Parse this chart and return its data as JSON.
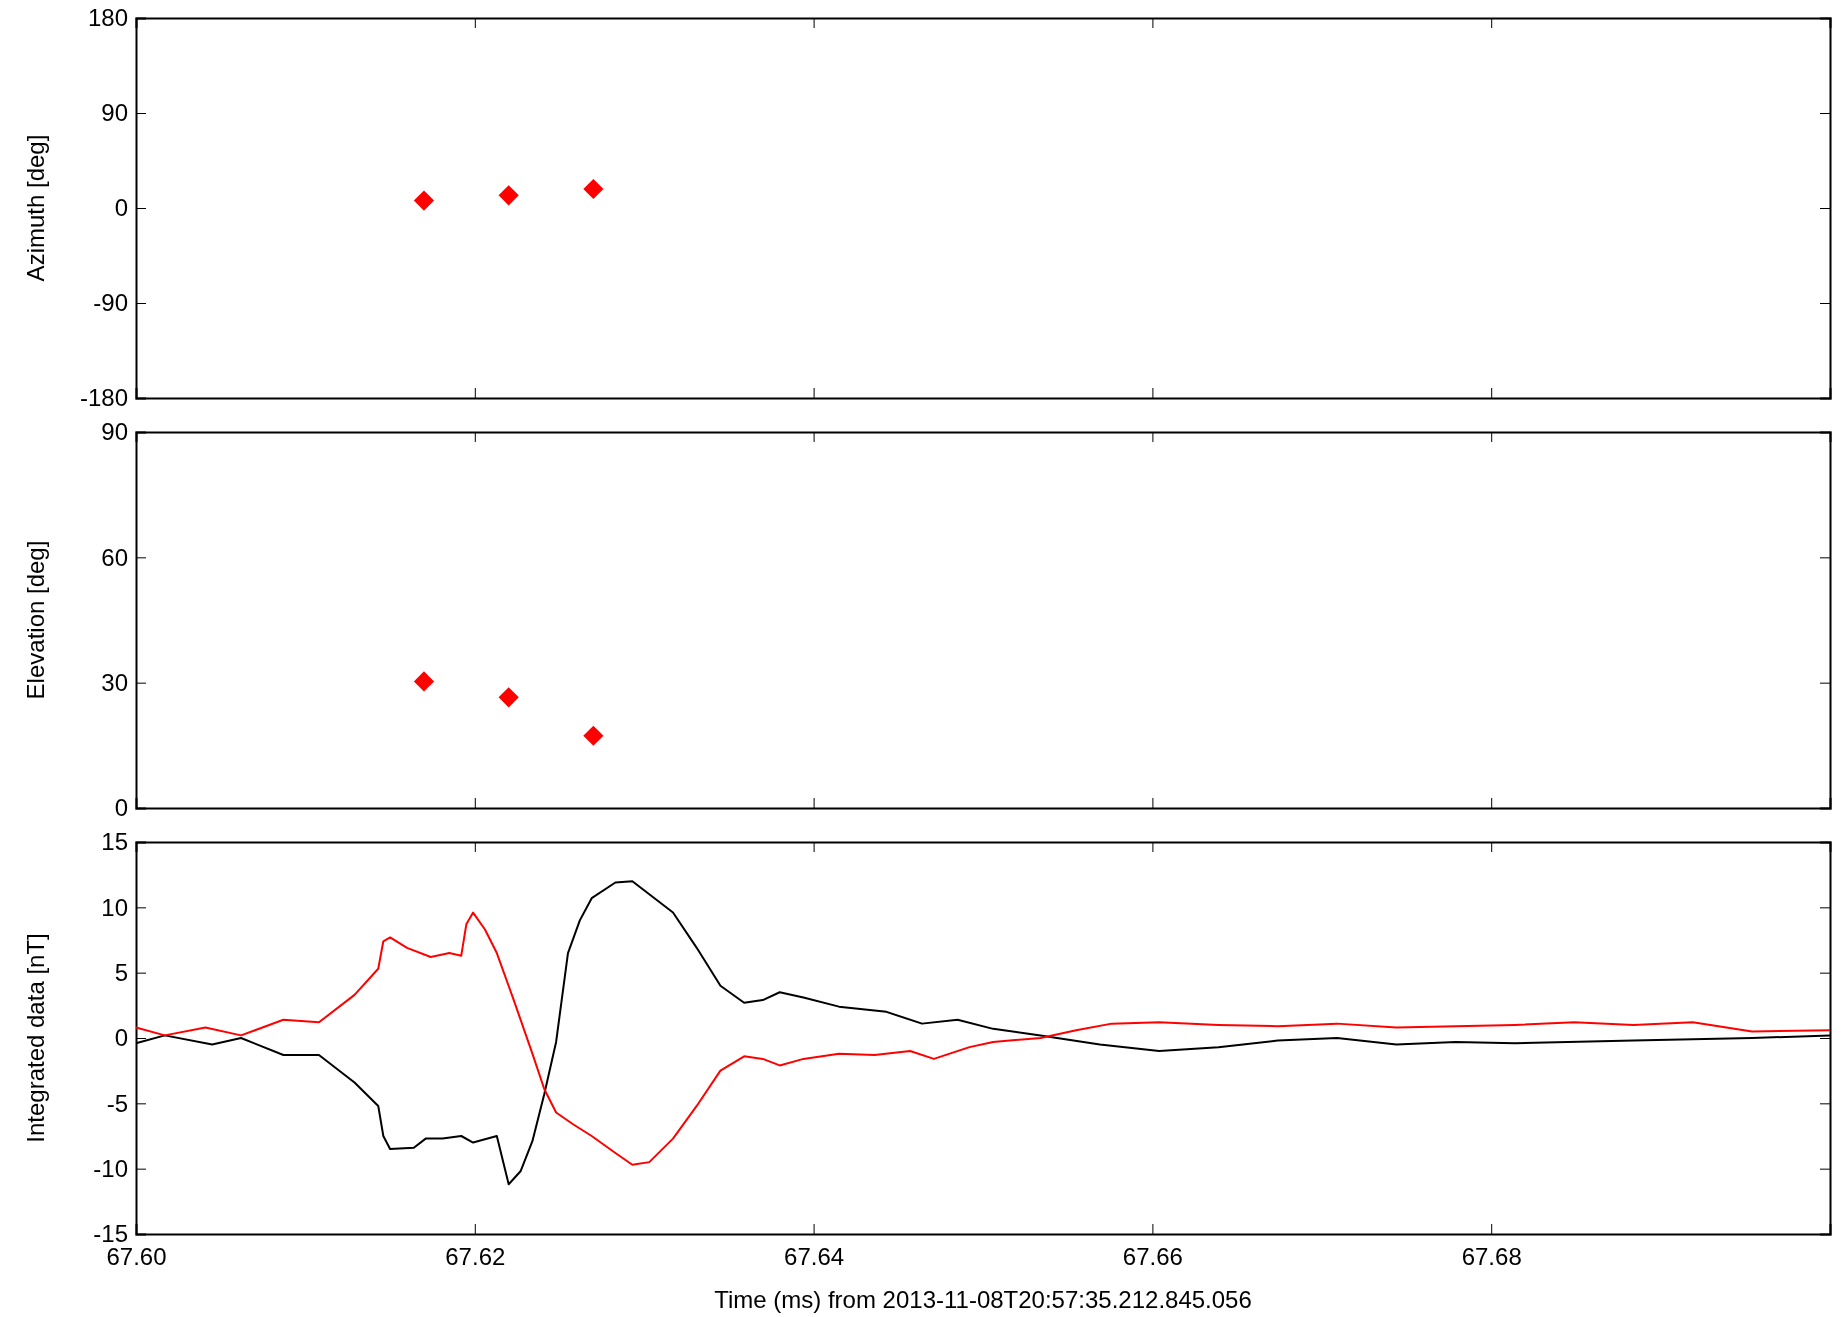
{
  "chart_data": [
    {
      "type": "scatter",
      "ylabel": "Azimuth [deg]",
      "xlim": [
        67.6,
        67.7
      ],
      "xticks": [
        {
          "value": 67.6,
          "label": null
        },
        {
          "value": 67.62,
          "label": null
        },
        {
          "value": 67.64,
          "label": null
        },
        {
          "value": 67.66,
          "label": null
        },
        {
          "value": 67.68,
          "label": null
        }
      ],
      "ylim": [
        -180,
        180
      ],
      "yticks": [
        -180,
        -90,
        0,
        90,
        180
      ],
      "tick_labels": "y",
      "marker": "diamond",
      "series": [
        {
          "color": "#ff0000",
          "x": [
            67.617,
            67.622,
            67.627
          ],
          "values": [
            7,
            12,
            18
          ]
        }
      ]
    },
    {
      "type": "scatter",
      "ylabel": "Elevation [deg]",
      "xlim": [
        67.6,
        67.7
      ],
      "xticks": [
        {
          "value": 67.6,
          "label": null
        },
        {
          "value": 67.62,
          "label": null
        },
        {
          "value": 67.64,
          "label": null
        },
        {
          "value": 67.66,
          "label": null
        },
        {
          "value": 67.68,
          "label": null
        }
      ],
      "ylim": [
        0,
        90
      ],
      "yticks": [
        0,
        30,
        60,
        90
      ],
      "tick_labels": "y",
      "marker": "diamond",
      "series": [
        {
          "color": "#ff0000",
          "x": [
            67.617,
            67.622,
            67.627
          ],
          "values": [
            30.3,
            26.5,
            17.3
          ]
        }
      ]
    },
    {
      "type": "line",
      "ylabel": "Integrated data [nT]",
      "xlabel": "Time (ms) from 2013-11-08T20:57:35.212.845.056",
      "xlim": [
        67.6,
        67.7
      ],
      "xticks": [
        {
          "value": 67.6,
          "label": "67.60"
        },
        {
          "value": 67.62,
          "label": "67.62"
        },
        {
          "value": 67.64,
          "label": "67.64"
        },
        {
          "value": 67.66,
          "label": "67.66"
        },
        {
          "value": 67.68,
          "label": "67.68"
        }
      ],
      "ylim": [
        -15,
        15
      ],
      "yticks": [
        -15,
        -10,
        -5,
        0,
        5,
        10,
        15
      ],
      "marker": "none",
      "line_style": "solid",
      "series": [
        {
          "color": "#000000",
          "x": [
            67.6,
            67.6017,
            67.6045,
            67.6062,
            67.6087,
            67.6108,
            67.6129,
            67.6143,
            67.6146,
            67.615,
            67.6164,
            67.6171,
            67.6181,
            67.6192,
            67.6199,
            67.6213,
            67.622,
            67.6227,
            67.6234,
            67.6241,
            67.6248,
            67.6255,
            67.6262,
            67.6269,
            67.6283,
            67.6293,
            67.6303,
            67.6317,
            67.6331,
            67.6345,
            67.6359,
            67.637,
            67.638,
            67.6394,
            67.6415,
            67.6443,
            67.6464,
            67.6485,
            67.6506,
            67.6534,
            67.6569,
            67.6604,
            67.6639,
            67.6674,
            67.6709,
            67.6744,
            67.6779,
            67.6814,
            67.6884,
            67.6954,
            67.7
          ],
          "values": [
            -0.4,
            0.2,
            -0.5,
            0,
            -1.3,
            -1.3,
            -3.4,
            -5.2,
            -7.5,
            -8.5,
            -8.4,
            -7.7,
            -7.7,
            -7.5,
            -8,
            -7.5,
            -11.2,
            -10.2,
            -7.9,
            -4.3,
            -0.3,
            6.5,
            9,
            10.7,
            11.9,
            12,
            11,
            9.6,
            6.9,
            4,
            2.7,
            2.9,
            3.5,
            3.1,
            2.4,
            2,
            1.1,
            1.4,
            0.7,
            0.2,
            -0.5,
            -1,
            -0.7,
            -0.2,
            0,
            -0.5,
            -0.3,
            -0.4,
            -0.2,
            0,
            0.2
          ]
        },
        {
          "color": "#ff0000",
          "x": [
            67.6,
            67.6017,
            67.6041,
            67.6062,
            67.6087,
            67.6108,
            67.6129,
            67.6143,
            67.6146,
            67.615,
            67.616,
            67.6174,
            67.6185,
            67.6192,
            67.6195,
            67.6199,
            67.6206,
            67.6213,
            67.6223,
            67.6234,
            67.6241,
            67.6248,
            67.6258,
            67.6269,
            67.6283,
            67.6293,
            67.6303,
            67.6317,
            67.6331,
            67.6345,
            67.6359,
            67.637,
            67.638,
            67.6394,
            67.6415,
            67.6436,
            67.6457,
            67.6471,
            67.6492,
            67.6506,
            67.6534,
            67.6555,
            67.6576,
            67.6604,
            67.6639,
            67.6674,
            67.6709,
            67.6744,
            67.6779,
            67.6814,
            67.6849,
            67.6884,
            67.6919,
            67.6954,
            67.7
          ],
          "values": [
            0.8,
            0.2,
            0.8,
            0.2,
            1.4,
            1.2,
            3.3,
            5.3,
            7.4,
            7.7,
            6.9,
            6.2,
            6.5,
            6.3,
            8.7,
            9.6,
            8.3,
            6.5,
            2.9,
            -1.2,
            -3.9,
            -5.7,
            -6.6,
            -7.5,
            -8.8,
            -9.7,
            -9.5,
            -7.7,
            -5.2,
            -2.5,
            -1.4,
            -1.6,
            -2.1,
            -1.6,
            -1.2,
            -1.3,
            -1,
            -1.6,
            -0.7,
            -0.3,
            0,
            0.6,
            1.1,
            1.2,
            1,
            0.9,
            1.1,
            0.8,
            0.9,
            1,
            1.2,
            1,
            1.2,
            0.5,
            0.6
          ]
        }
      ]
    }
  ]
}
